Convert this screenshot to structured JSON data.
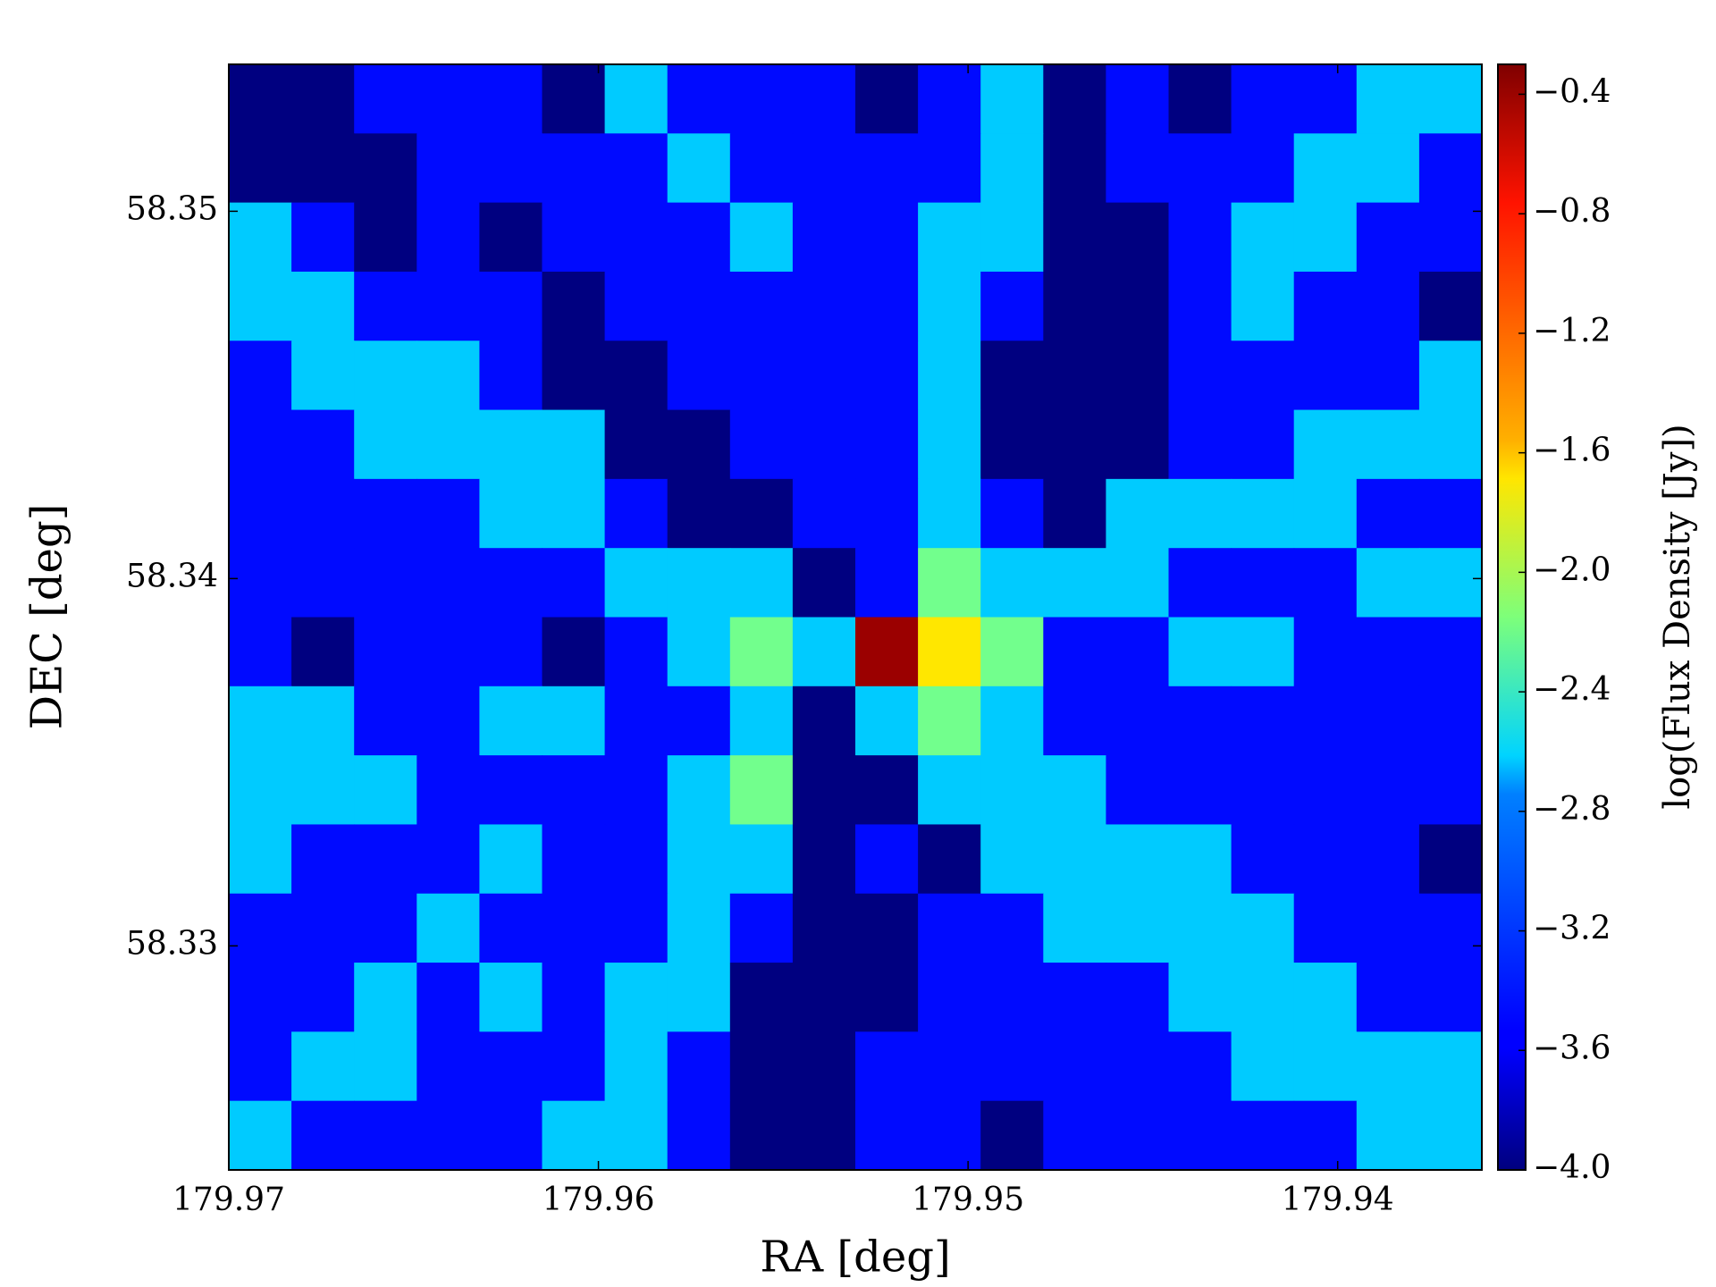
{
  "chart_data": {
    "type": "heatmap",
    "xlabel": "RA [deg]",
    "ylabel": "DEC [deg]",
    "colorbar_label": "log(Flux Density [Jy])",
    "xlim": [
      179.97,
      179.9361
    ],
    "ylim": [
      58.3239,
      58.354
    ],
    "xticks": [
      179.97,
      179.96,
      179.95,
      179.94
    ],
    "yticks": [
      58.33,
      58.34,
      58.35
    ],
    "clim": [
      -4.0,
      -0.3
    ],
    "colormap": "jet",
    "cticks": [
      {
        "value": -4.0,
        "label": "−4.0"
      },
      {
        "value": -3.6,
        "label": "−3.6"
      },
      {
        "value": -3.2,
        "label": "−3.2"
      },
      {
        "value": -2.8,
        "label": "−2.8"
      },
      {
        "value": -2.4,
        "label": "−2.4"
      },
      {
        "value": -2.0,
        "label": "−2.0"
      },
      {
        "value": -1.6,
        "label": "−1.6"
      },
      {
        "value": -1.2,
        "label": "−1.2"
      },
      {
        "value": -0.8,
        "label": "−0.8"
      },
      {
        "value": -0.4,
        "label": "−0.4"
      }
    ],
    "z": [
      [
        -4.0,
        -4.0,
        -3.5,
        -3.5,
        -3.5,
        -4.0,
        -2.8,
        -3.5,
        -3.5,
        -3.5,
        -4.0,
        -3.5,
        -2.8,
        -4.0,
        -3.5,
        -4.0,
        -3.5,
        -3.5,
        -2.8,
        -2.8
      ],
      [
        -4.0,
        -4.0,
        -4.0,
        -3.5,
        -3.5,
        -3.5,
        -3.5,
        -2.8,
        -3.5,
        -3.5,
        -3.5,
        -3.5,
        -2.8,
        -4.0,
        -3.5,
        -3.5,
        -3.5,
        -2.8,
        -2.8,
        -3.5
      ],
      [
        -2.8,
        -3.5,
        -4.0,
        -3.5,
        -4.0,
        -3.5,
        -3.5,
        -3.5,
        -2.8,
        -3.5,
        -3.5,
        -2.8,
        -2.8,
        -4.0,
        -4.0,
        -3.5,
        -2.8,
        -2.8,
        -3.5,
        -3.5
      ],
      [
        -2.8,
        -2.8,
        -3.5,
        -3.5,
        -3.5,
        -4.0,
        -3.5,
        -3.5,
        -3.5,
        -3.5,
        -3.5,
        -2.8,
        -3.5,
        -4.0,
        -4.0,
        -3.5,
        -2.8,
        -3.5,
        -3.5,
        -4.0
      ],
      [
        -3.5,
        -2.8,
        -2.8,
        -2.8,
        -3.5,
        -4.0,
        -4.0,
        -3.5,
        -3.5,
        -3.5,
        -3.5,
        -2.8,
        -4.0,
        -4.0,
        -4.0,
        -3.5,
        -3.5,
        -3.5,
        -3.5,
        -2.8
      ],
      [
        -3.5,
        -3.5,
        -2.8,
        -2.8,
        -2.8,
        -2.8,
        -4.0,
        -4.0,
        -3.5,
        -3.5,
        -3.5,
        -2.8,
        -4.0,
        -4.0,
        -4.0,
        -3.5,
        -3.5,
        -2.8,
        -2.8,
        -2.8
      ],
      [
        -3.5,
        -3.5,
        -3.5,
        -3.5,
        -2.8,
        -2.8,
        -3.5,
        -4.0,
        -4.0,
        -3.5,
        -3.5,
        -2.8,
        -3.5,
        -4.0,
        -2.8,
        -2.8,
        -2.8,
        -2.8,
        -3.5,
        -3.5
      ],
      [
        -3.5,
        -3.5,
        -3.5,
        -3.5,
        -3.5,
        -3.5,
        -2.8,
        -2.8,
        -2.8,
        -4.0,
        -3.5,
        -2.2,
        -2.8,
        -2.8,
        -2.8,
        -3.5,
        -3.5,
        -3.5,
        -2.8,
        -2.8
      ],
      [
        -3.5,
        -4.0,
        -3.5,
        -3.5,
        -3.5,
        -4.0,
        -3.5,
        -2.8,
        -2.2,
        -2.8,
        -0.4,
        -1.6,
        -2.2,
        -3.5,
        -3.5,
        -2.8,
        -2.8,
        -3.5,
        -3.5,
        -3.5
      ],
      [
        -2.8,
        -2.8,
        -3.5,
        -3.5,
        -2.8,
        -2.8,
        -3.5,
        -3.5,
        -2.8,
        -4.0,
        -2.8,
        -2.2,
        -2.8,
        -3.5,
        -3.5,
        -3.5,
        -3.5,
        -3.5,
        -3.5,
        -3.5
      ],
      [
        -2.8,
        -2.8,
        -2.8,
        -3.5,
        -3.5,
        -3.5,
        -3.5,
        -2.8,
        -2.2,
        -4.0,
        -4.0,
        -2.8,
        -2.8,
        -2.8,
        -3.5,
        -3.5,
        -3.5,
        -3.5,
        -3.5,
        -3.5
      ],
      [
        -2.8,
        -3.5,
        -3.5,
        -3.5,
        -2.8,
        -3.5,
        -3.5,
        -2.8,
        -2.8,
        -4.0,
        -3.5,
        -4.0,
        -2.8,
        -2.8,
        -2.8,
        -2.8,
        -3.5,
        -3.5,
        -3.5,
        -4.0
      ],
      [
        -3.5,
        -3.5,
        -3.5,
        -2.8,
        -3.5,
        -3.5,
        -3.5,
        -2.8,
        -3.5,
        -4.0,
        -4.0,
        -3.5,
        -3.5,
        -2.8,
        -2.8,
        -2.8,
        -2.8,
        -3.5,
        -3.5,
        -3.5
      ],
      [
        -3.5,
        -3.5,
        -2.8,
        -3.5,
        -2.8,
        -3.5,
        -2.8,
        -2.8,
        -4.0,
        -4.0,
        -4.0,
        -3.5,
        -3.5,
        -3.5,
        -3.5,
        -2.8,
        -2.8,
        -2.8,
        -3.5,
        -3.5
      ],
      [
        -3.5,
        -2.8,
        -2.8,
        -3.5,
        -3.5,
        -3.5,
        -2.8,
        -3.5,
        -4.0,
        -4.0,
        -3.5,
        -3.5,
        -3.5,
        -3.5,
        -3.5,
        -3.5,
        -2.8,
        -2.8,
        -2.8,
        -2.8
      ],
      [
        -2.8,
        -3.5,
        -3.5,
        -3.5,
        -3.5,
        -2.8,
        -2.8,
        -3.5,
        -4.0,
        -4.0,
        -3.5,
        -3.5,
        -4.0,
        -3.5,
        -3.5,
        -3.5,
        -3.5,
        -3.5,
        -2.8,
        -2.8
      ]
    ]
  }
}
